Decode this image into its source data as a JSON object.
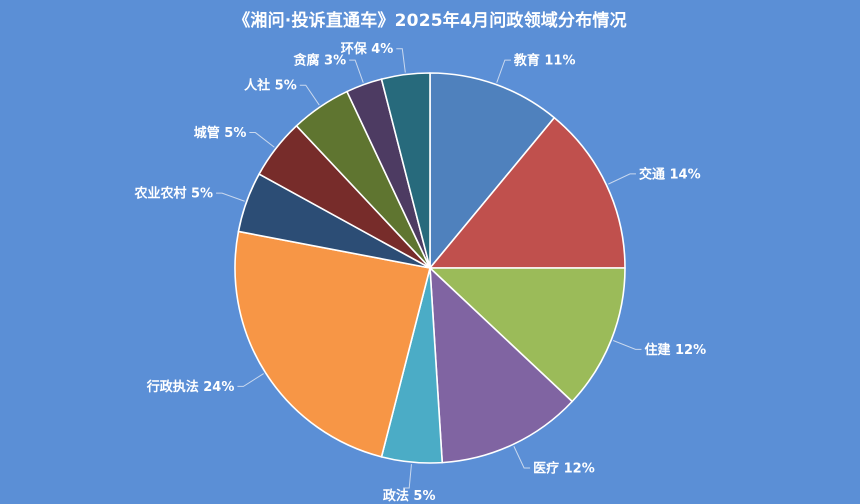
{
  "chart_data": {
    "type": "pie",
    "title": "《湘问·投诉直通车》2025年4月问政领域分布情况",
    "slices": [
      {
        "name": "教育",
        "value": 11,
        "color": "#4f81bd",
        "label": "教育 11%"
      },
      {
        "name": "交通",
        "value": 14,
        "color": "#c0504d",
        "label": "交通 14%"
      },
      {
        "name": "住建",
        "value": 12,
        "color": "#9bbb59",
        "label": "住建 12%"
      },
      {
        "name": "医疗",
        "value": 12,
        "color": "#8064a2",
        "label": "医疗 12%"
      },
      {
        "name": "政法",
        "value": 5,
        "color": "#4bacc6",
        "label": "政法 5%"
      },
      {
        "name": "行政执法",
        "value": 24,
        "color": "#f79646",
        "label": "行政执法 24%"
      },
      {
        "name": "农业农村",
        "value": 5,
        "color": "#2c4d75",
        "label": "农业农村 5%"
      },
      {
        "name": "城管",
        "value": 5,
        "color": "#772c2a",
        "label": "城管 5%"
      },
      {
        "name": "人社",
        "value": 5,
        "color": "#5f7530",
        "label": "人社 5%"
      },
      {
        "name": "贪腐",
        "value": 3,
        "color": "#4d3b62",
        "label": "贪腐 3%"
      },
      {
        "name": "环保",
        "value": 4,
        "color": "#276a7c",
        "label": "环保 4%"
      }
    ],
    "background_color": "#5b8fd6",
    "legend": "none"
  }
}
